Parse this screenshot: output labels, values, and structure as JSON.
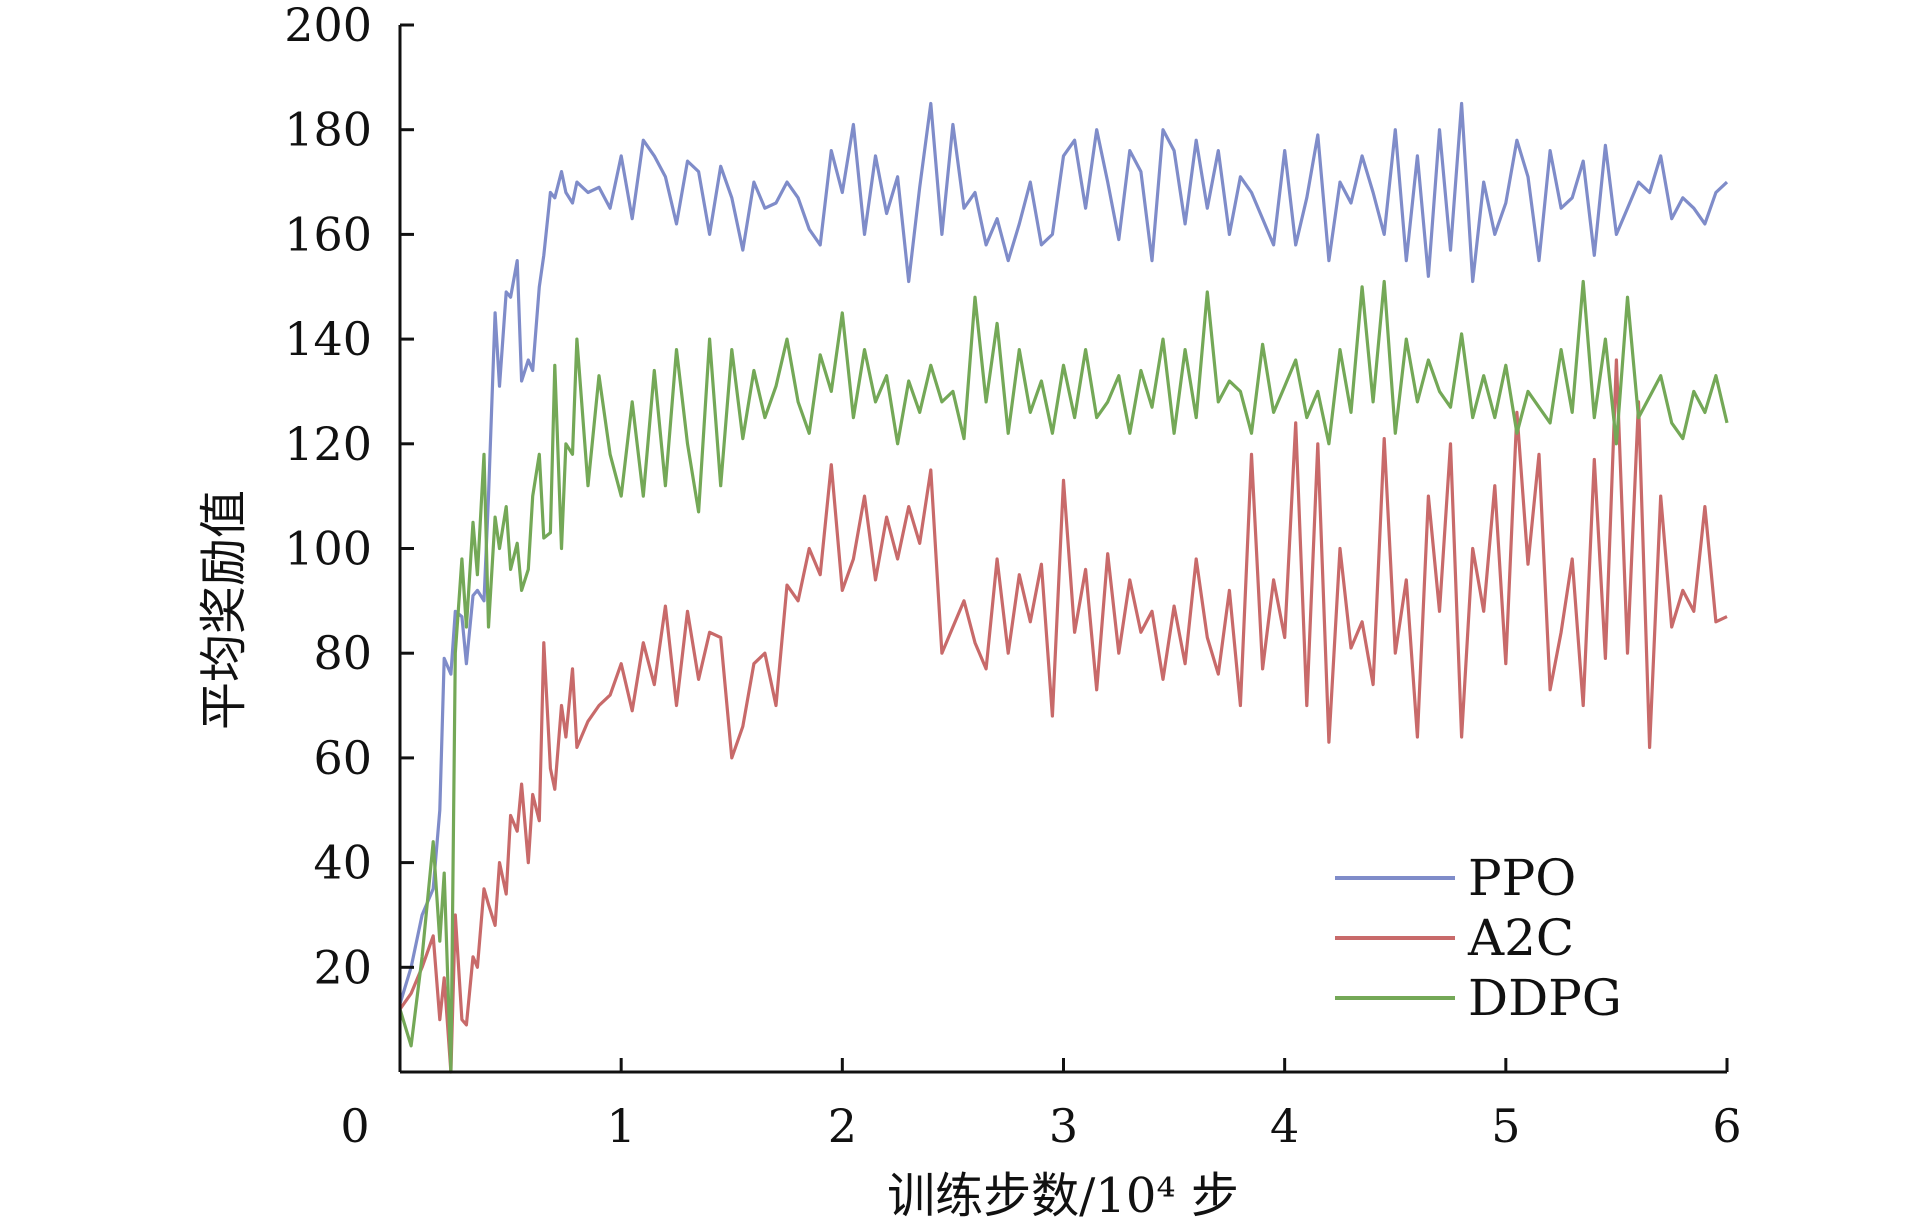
{
  "chart_data": {
    "type": "line",
    "title": "",
    "xlabel": "训练步数/10⁴ 步",
    "ylabel": "平均奖励值",
    "xlim": [
      0,
      6
    ],
    "ylim": [
      0,
      200
    ],
    "x_ticks": [
      0,
      1,
      2,
      3,
      4,
      5,
      6
    ],
    "y_ticks": [
      20,
      40,
      60,
      80,
      100,
      120,
      140,
      160,
      180,
      200
    ],
    "grid": false,
    "legend_position": "bottom-right",
    "series": [
      {
        "name": "PPO",
        "color": "#7f8cc9",
        "x": [
          0,
          0.05,
          0.1,
          0.15,
          0.18,
          0.2,
          0.23,
          0.25,
          0.28,
          0.3,
          0.33,
          0.35,
          0.38,
          0.4,
          0.43,
          0.45,
          0.48,
          0.5,
          0.53,
          0.55,
          0.58,
          0.6,
          0.63,
          0.65,
          0.68,
          0.7,
          0.73,
          0.75,
          0.78,
          0.8,
          0.85,
          0.9,
          0.95,
          1.0,
          1.05,
          1.1,
          1.15,
          1.2,
          1.25,
          1.3,
          1.35,
          1.4,
          1.45,
          1.5,
          1.55,
          1.6,
          1.65,
          1.7,
          1.75,
          1.8,
          1.85,
          1.9,
          1.95,
          2.0,
          2.05,
          2.1,
          2.15,
          2.2,
          2.25,
          2.3,
          2.35,
          2.4,
          2.45,
          2.5,
          2.55,
          2.6,
          2.65,
          2.7,
          2.75,
          2.8,
          2.85,
          2.9,
          2.95,
          3.0,
          3.05,
          3.1,
          3.15,
          3.2,
          3.25,
          3.3,
          3.35,
          3.4,
          3.45,
          3.5,
          3.55,
          3.6,
          3.65,
          3.7,
          3.75,
          3.8,
          3.85,
          3.9,
          3.95,
          4.0,
          4.05,
          4.1,
          4.15,
          4.2,
          4.25,
          4.3,
          4.35,
          4.4,
          4.45,
          4.5,
          4.55,
          4.6,
          4.65,
          4.7,
          4.75,
          4.8,
          4.85,
          4.9,
          4.95,
          5.0,
          5.05,
          5.1,
          5.15,
          5.2,
          5.25,
          5.3,
          5.35,
          5.4,
          5.45,
          5.5,
          5.55,
          5.6,
          5.65,
          5.7,
          5.75,
          5.8,
          5.85,
          5.9,
          5.95,
          6.0
        ],
        "values": [
          13,
          20,
          30,
          35,
          50,
          79,
          76,
          88,
          87,
          78,
          91,
          92,
          90,
          110,
          145,
          131,
          149,
          148,
          155,
          132,
          136,
          134,
          150,
          156,
          168,
          167,
          172,
          168,
          166,
          170,
          168,
          169,
          165,
          175,
          163,
          178,
          175,
          171,
          162,
          174,
          172,
          160,
          173,
          167,
          157,
          170,
          165,
          166,
          170,
          167,
          161,
          158,
          176,
          168,
          181,
          160,
          175,
          164,
          171,
          151,
          169,
          185,
          160,
          181,
          165,
          168,
          158,
          163,
          155,
          162,
          170,
          158,
          160,
          175,
          178,
          165,
          180,
          170,
          159,
          176,
          172,
          155,
          180,
          176,
          162,
          178,
          165,
          176,
          160,
          171,
          168,
          163,
          158,
          176,
          158,
          167,
          179,
          155,
          170,
          166,
          175,
          168,
          160,
          180,
          155,
          175,
          152,
          180,
          157,
          185,
          151,
          170,
          160,
          166,
          178,
          171,
          155,
          176,
          165,
          167,
          174,
          156,
          177,
          160,
          165,
          170,
          168,
          175,
          163,
          167,
          165,
          162,
          168,
          170
        ],
        "name_visible": true
      },
      {
        "name": "A2C",
        "color": "#c86a6a",
        "x": [
          0,
          0.05,
          0.1,
          0.15,
          0.18,
          0.2,
          0.23,
          0.25,
          0.28,
          0.3,
          0.33,
          0.35,
          0.38,
          0.4,
          0.43,
          0.45,
          0.48,
          0.5,
          0.53,
          0.55,
          0.58,
          0.6,
          0.63,
          0.65,
          0.68,
          0.7,
          0.73,
          0.75,
          0.78,
          0.8,
          0.85,
          0.9,
          0.95,
          1.0,
          1.05,
          1.1,
          1.15,
          1.2,
          1.25,
          1.3,
          1.35,
          1.4,
          1.45,
          1.5,
          1.55,
          1.6,
          1.65,
          1.7,
          1.75,
          1.8,
          1.85,
          1.9,
          1.95,
          2.0,
          2.05,
          2.1,
          2.15,
          2.2,
          2.25,
          2.3,
          2.35,
          2.4,
          2.45,
          2.5,
          2.55,
          2.6,
          2.65,
          2.7,
          2.75,
          2.8,
          2.85,
          2.9,
          2.95,
          3.0,
          3.05,
          3.1,
          3.15,
          3.2,
          3.25,
          3.3,
          3.35,
          3.4,
          3.45,
          3.5,
          3.55,
          3.6,
          3.65,
          3.7,
          3.75,
          3.8,
          3.85,
          3.9,
          3.95,
          4.0,
          4.05,
          4.1,
          4.15,
          4.2,
          4.25,
          4.3,
          4.35,
          4.4,
          4.45,
          4.5,
          4.55,
          4.6,
          4.65,
          4.7,
          4.75,
          4.8,
          4.85,
          4.9,
          4.95,
          5.0,
          5.05,
          5.1,
          5.15,
          5.2,
          5.25,
          5.3,
          5.35,
          5.4,
          5.45,
          5.5,
          5.55,
          5.6,
          5.65,
          5.7,
          5.75,
          5.8,
          5.85,
          5.9,
          5.95,
          6.0
        ],
        "values": [
          12,
          15,
          20,
          26,
          10,
          18,
          0,
          30,
          10,
          9,
          22,
          20,
          35,
          32,
          28,
          40,
          34,
          49,
          46,
          55,
          40,
          53,
          48,
          82,
          58,
          54,
          70,
          64,
          77,
          62,
          67,
          70,
          72,
          78,
          69,
          82,
          74,
          89,
          70,
          88,
          75,
          84,
          83,
          60,
          66,
          78,
          80,
          70,
          93,
          90,
          100,
          95,
          116,
          92,
          98,
          110,
          94,
          106,
          98,
          108,
          101,
          115,
          80,
          85,
          90,
          82,
          77,
          98,
          80,
          95,
          86,
          97,
          68,
          113,
          84,
          96,
          73,
          99,
          80,
          94,
          84,
          88,
          75,
          89,
          78,
          98,
          83,
          76,
          92,
          70,
          118,
          77,
          94,
          83,
          124,
          70,
          120,
          63,
          100,
          81,
          86,
          74,
          121,
          80,
          94,
          64,
          110,
          88,
          120,
          64,
          100,
          88,
          112,
          78,
          126,
          97,
          118,
          73,
          84,
          98,
          70,
          117,
          79,
          136,
          80,
          128,
          62,
          110,
          85,
          92,
          88,
          108,
          86,
          87
        ],
        "name_visible": true
      },
      {
        "name": "DDPG",
        "color": "#74a857",
        "x": [
          0,
          0.05,
          0.1,
          0.15,
          0.18,
          0.2,
          0.23,
          0.25,
          0.28,
          0.3,
          0.33,
          0.35,
          0.38,
          0.4,
          0.43,
          0.45,
          0.48,
          0.5,
          0.53,
          0.55,
          0.58,
          0.6,
          0.63,
          0.65,
          0.68,
          0.7,
          0.73,
          0.75,
          0.78,
          0.8,
          0.85,
          0.9,
          0.95,
          1.0,
          1.05,
          1.1,
          1.15,
          1.2,
          1.25,
          1.3,
          1.35,
          1.4,
          1.45,
          1.5,
          1.55,
          1.6,
          1.65,
          1.7,
          1.75,
          1.8,
          1.85,
          1.9,
          1.95,
          2.0,
          2.05,
          2.1,
          2.15,
          2.2,
          2.25,
          2.3,
          2.35,
          2.4,
          2.45,
          2.5,
          2.55,
          2.6,
          2.65,
          2.7,
          2.75,
          2.8,
          2.85,
          2.9,
          2.95,
          3.0,
          3.05,
          3.1,
          3.15,
          3.2,
          3.25,
          3.3,
          3.35,
          3.4,
          3.45,
          3.5,
          3.55,
          3.6,
          3.65,
          3.7,
          3.75,
          3.8,
          3.85,
          3.9,
          3.95,
          4.0,
          4.05,
          4.1,
          4.15,
          4.2,
          4.25,
          4.3,
          4.35,
          4.4,
          4.45,
          4.5,
          4.55,
          4.6,
          4.65,
          4.7,
          4.75,
          4.8,
          4.85,
          4.9,
          4.95,
          5.0,
          5.05,
          5.1,
          5.15,
          5.2,
          5.25,
          5.3,
          5.35,
          5.4,
          5.45,
          5.5,
          5.55,
          5.6,
          5.65,
          5.7,
          5.75,
          5.8,
          5.85,
          5.9,
          5.95,
          6.0
        ],
        "values": [
          12,
          5,
          22,
          44,
          25,
          38,
          0,
          80,
          98,
          85,
          105,
          95,
          118,
          85,
          106,
          100,
          108,
          96,
          101,
          92,
          96,
          110,
          118,
          102,
          103,
          135,
          100,
          120,
          118,
          140,
          112,
          133,
          118,
          110,
          128,
          110,
          134,
          112,
          138,
          120,
          107,
          140,
          112,
          138,
          121,
          134,
          125,
          131,
          140,
          128,
          122,
          137,
          130,
          145,
          125,
          138,
          128,
          133,
          120,
          132,
          126,
          135,
          128,
          130,
          121,
          148,
          128,
          143,
          122,
          138,
          126,
          132,
          122,
          135,
          125,
          138,
          125,
          128,
          133,
          122,
          134,
          127,
          140,
          122,
          138,
          125,
          149,
          128,
          132,
          130,
          122,
          139,
          126,
          131,
          136,
          125,
          130,
          120,
          138,
          126,
          150,
          128,
          151,
          122,
          140,
          128,
          136,
          130,
          127,
          141,
          125,
          133,
          125,
          135,
          122,
          130,
          127,
          124,
          138,
          126,
          151,
          125,
          140,
          120,
          148,
          125,
          129,
          133,
          124,
          121,
          130,
          126,
          133,
          124
        ],
        "name_visible": true
      }
    ]
  }
}
